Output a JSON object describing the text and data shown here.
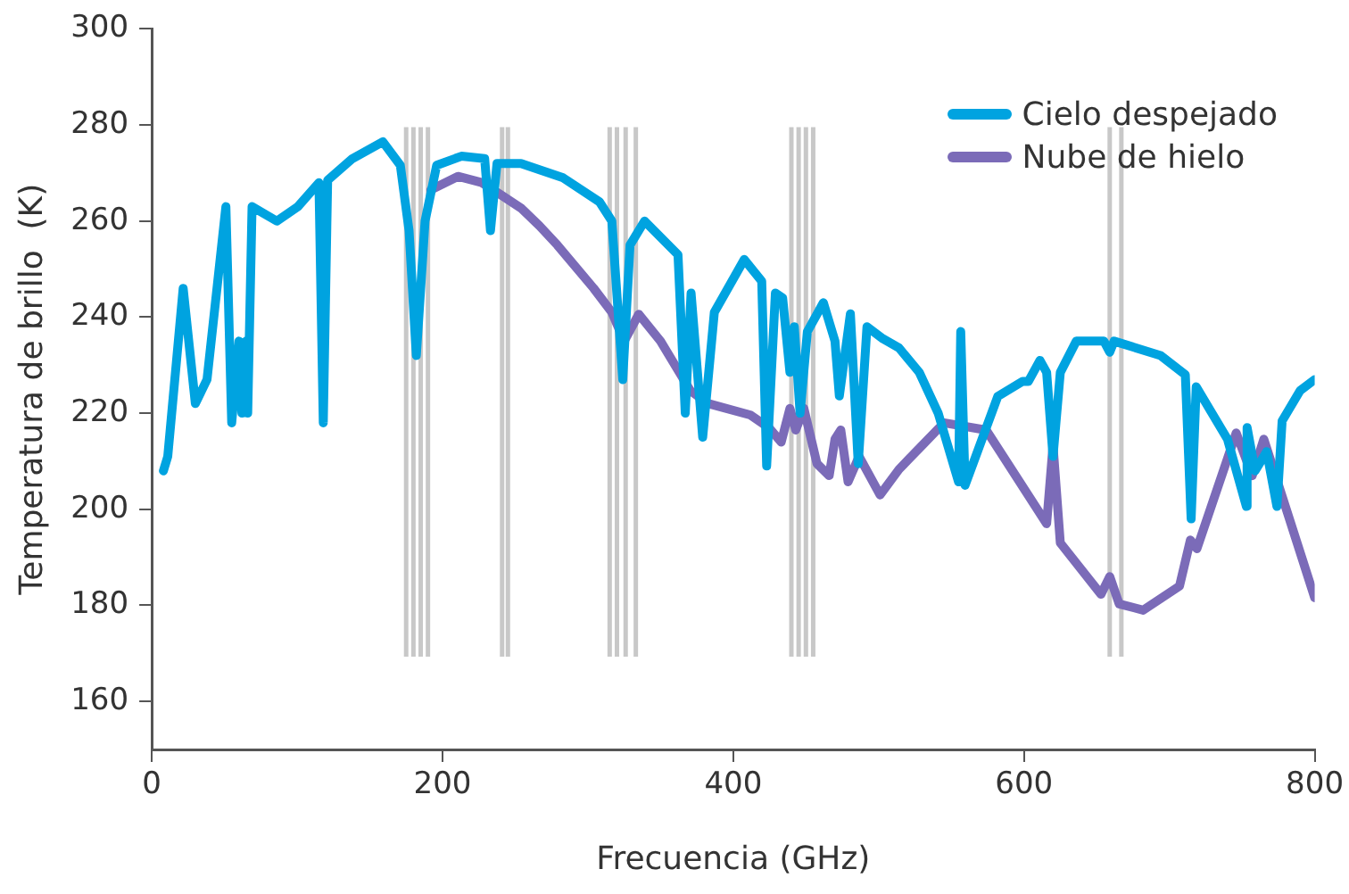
{
  "chart_data": {
    "type": "line",
    "xlabel": "Frecuencia (GHz)",
    "ylabel": "Temperatura de brillo  (K)",
    "xlim": [
      0,
      800
    ],
    "xticks": [
      0,
      200,
      400,
      600,
      800
    ],
    "ylim": [
      150,
      300
    ],
    "yticks": [
      160,
      180,
      200,
      220,
      240,
      260,
      280,
      300
    ],
    "grid": false,
    "legend": "top right",
    "marker": "none",
    "line_style": "solid",
    "ref_lines": [
      {
        "axis": "x",
        "value": 175,
        "color": "#c8c8c8"
      },
      {
        "axis": "x",
        "value": 180,
        "color": "#c8c8c8"
      },
      {
        "axis": "x",
        "value": 185,
        "color": "#c8c8c8"
      },
      {
        "axis": "x",
        "value": 190,
        "color": "#c8c8c8"
      },
      {
        "axis": "x",
        "value": 241,
        "color": "#c8c8c8"
      },
      {
        "axis": "x",
        "value": 245,
        "color": "#c8c8c8"
      },
      {
        "axis": "x",
        "value": 315,
        "color": "#c8c8c8"
      },
      {
        "axis": "x",
        "value": 320,
        "color": "#c8c8c8"
      },
      {
        "axis": "x",
        "value": 326,
        "color": "#c8c8c8"
      },
      {
        "axis": "x",
        "value": 333,
        "color": "#c8c8c8"
      },
      {
        "axis": "x",
        "value": 440,
        "color": "#c8c8c8"
      },
      {
        "axis": "x",
        "value": 445,
        "color": "#c8c8c8"
      },
      {
        "axis": "x",
        "value": 450,
        "color": "#c8c8c8"
      },
      {
        "axis": "x",
        "value": 455,
        "color": "#c8c8c8"
      },
      {
        "axis": "x",
        "value": 659,
        "color": "#c8c8c8"
      },
      {
        "axis": "x",
        "value": 667,
        "color": "#c8c8c8"
      }
    ],
    "series": [
      {
        "name": "Cielo despejado",
        "color": "#00a3e0",
        "x": [
          8,
          11,
          21.6,
          30,
          38,
          51,
          55,
          60,
          62,
          65,
          66,
          69,
          86,
          100.5,
          115,
          118,
          121,
          138,
          159,
          171,
          177,
          182,
          188,
          196,
          213,
          229,
          233,
          237.5,
          254,
          283,
          308,
          316.5,
          324,
          329,
          339,
          362,
          367,
          371,
          379,
          387,
          407.6,
          419.6,
          423,
          429,
          434,
          439,
          442,
          446,
          451,
          462,
          470,
          473,
          480.6,
          486,
          492,
          503,
          514,
          528,
          541,
          555,
          556.5,
          559.5,
          582,
          599,
          603,
          611,
          615.6,
          620,
          625,
          636,
          655,
          659,
          662,
          694,
          711,
          715,
          718.5,
          740,
          753,
          753.5,
          759,
          767,
          774,
          777.6,
          790,
          800
        ],
        "values": [
          208,
          211,
          246,
          222,
          227,
          263,
          218,
          235,
          220,
          235,
          220,
          263,
          260,
          263,
          268,
          218,
          268.5,
          273,
          276.5,
          271.6,
          258,
          232,
          260,
          271.6,
          273.5,
          273,
          258,
          272,
          272,
          269,
          264,
          260,
          227,
          255,
          260,
          253,
          220,
          245,
          215,
          241,
          252,
          247.5,
          209,
          245,
          244,
          228.5,
          238,
          220,
          237,
          243,
          235,
          223.6,
          240.7,
          209.5,
          238,
          235.5,
          233.6,
          228.5,
          220,
          205.7,
          237,
          205,
          223.5,
          226.6,
          226.6,
          231,
          228.5,
          211,
          228.5,
          235,
          235,
          232.7,
          235,
          232,
          228,
          198,
          225.5,
          214.6,
          200.6,
          217,
          208,
          212,
          200.6,
          218.4,
          224.7,
          227
        ]
      },
      {
        "name": "Nube de hielo",
        "color": "#7b6bb8",
        "x": [
          192,
          210.6,
          227,
          237.5,
          254,
          266.7,
          279,
          304,
          316.5,
          325,
          335,
          350,
          370.5,
          383,
          412,
          424.5,
          433,
          439,
          443,
          448.6,
          457.6,
          466,
          470,
          474,
          479,
          486.6,
          501,
          514,
          528,
          545,
          574,
          615.6,
          620,
          625,
          653,
          659,
          665.5,
          682,
          707,
          714.5,
          719,
          746,
          757,
          765,
          800
        ],
        "values": [
          266.5,
          269.3,
          268,
          266,
          262.7,
          259,
          255,
          246,
          241,
          235,
          240.6,
          235,
          224.7,
          222,
          219.6,
          217,
          214,
          221,
          216.5,
          221,
          209.5,
          207,
          214.6,
          216.5,
          205.7,
          211,
          203,
          208.3,
          212.7,
          218,
          216.5,
          197,
          213.3,
          193,
          182.3,
          186,
          180.3,
          179,
          184,
          193.6,
          191.8,
          215.9,
          207,
          214.6,
          181.6
        ]
      }
    ]
  }
}
